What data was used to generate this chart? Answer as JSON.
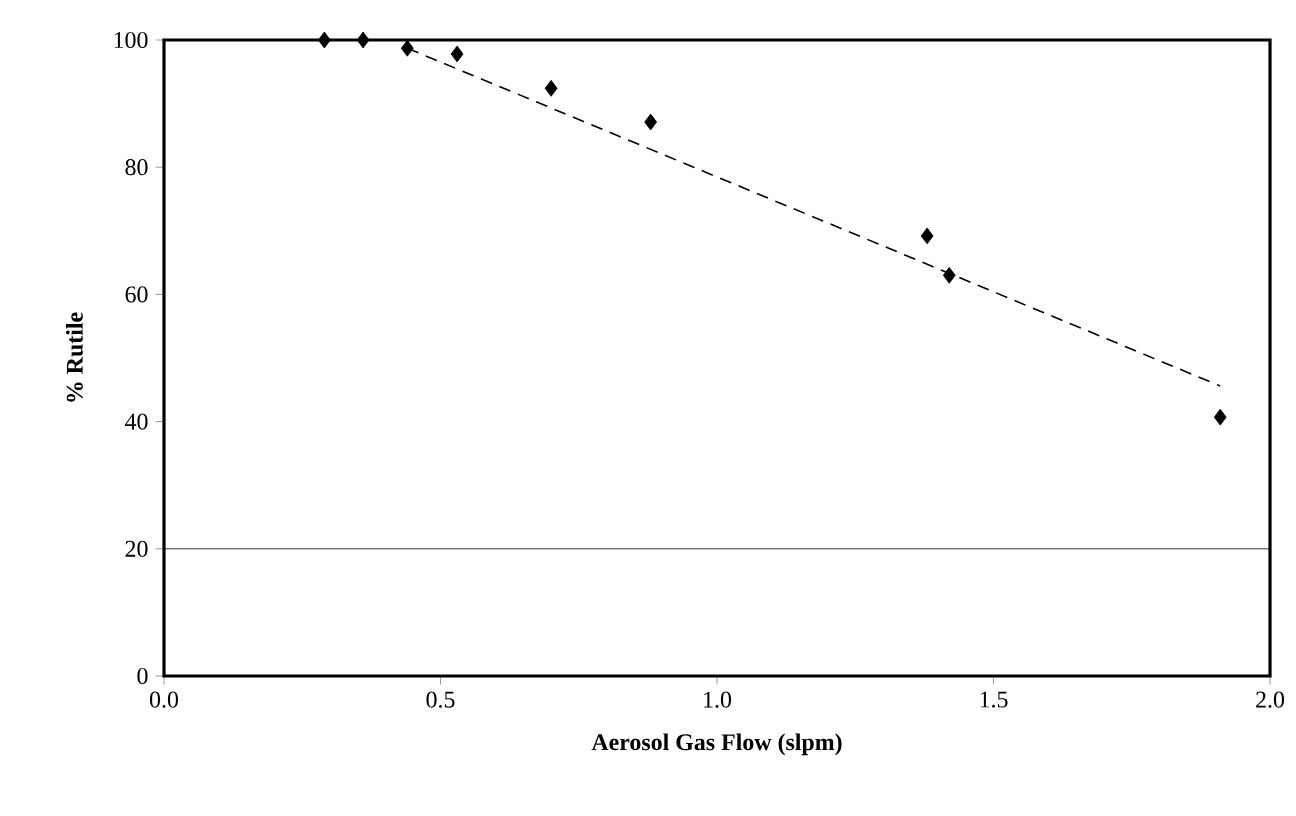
{
  "chart_data": {
    "type": "scatter",
    "xlabel": "Aerosol Gas Flow (slpm)",
    "ylabel": "% Rutile",
    "xlim": [
      0,
      2
    ],
    "xticks": [
      {
        "value": 0,
        "label": "0.0"
      },
      {
        "value": 0.5,
        "label": "0.5"
      },
      {
        "value": 1,
        "label": "1.0"
      },
      {
        "value": 1.5,
        "label": "1.5"
      },
      {
        "value": 2,
        "label": "2.0"
      }
    ],
    "ylim": [
      0,
      100
    ],
    "yticks": [
      0,
      20,
      40,
      60,
      80,
      100
    ],
    "grid": false,
    "series": [
      {
        "color": "#000000",
        "marker": "diamond",
        "x": [
          0.29,
          0.36,
          0.44,
          0.53,
          0.7,
          0.88,
          1.38,
          1.42,
          1.91
        ],
        "values": [
          100,
          100,
          98.7,
          97.8,
          92.4,
          87.1,
          69.2,
          63,
          40.7
        ]
      },
      {
        "type": "line",
        "color": "#000000",
        "line_style": "dashed",
        "x": [
          0.44,
          1.91
        ],
        "values": [
          98.7,
          45.6
        ]
      }
    ],
    "ref_lines": [
      {
        "axis": "y",
        "value": 20,
        "color": "#000000"
      }
    ]
  }
}
